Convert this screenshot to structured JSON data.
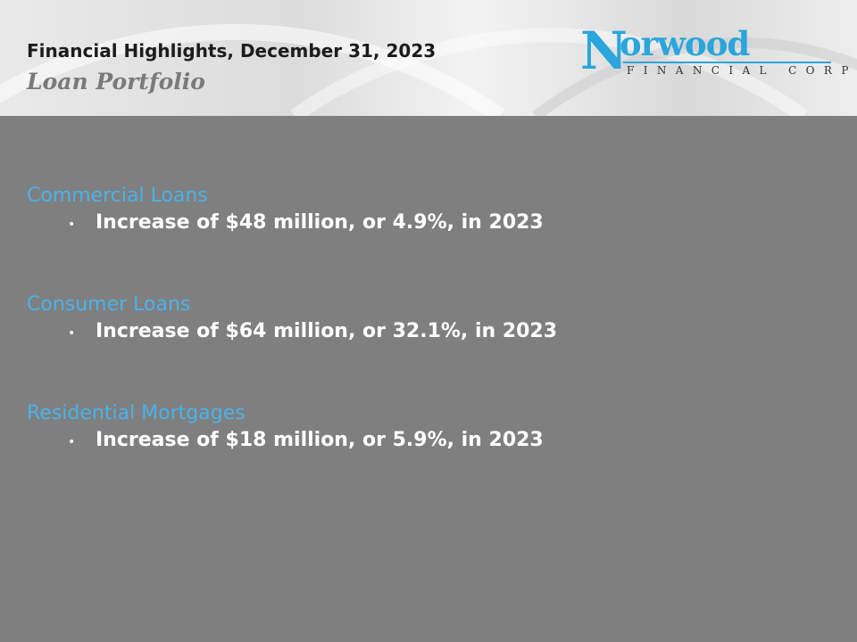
{
  "header": {
    "title": "Financial Highlights, December 31, 2023",
    "subtitle": "Loan Portfolio"
  },
  "logo": {
    "initial": "N",
    "name_rest": "orwood",
    "tagline": "FINANCIAL CORP",
    "color": "#2aa6dc"
  },
  "sections": [
    {
      "heading": "Commercial Loans",
      "bullet_glyph": "•",
      "bullet": "Increase of $48 million, or 4.9%, in 2023"
    },
    {
      "heading": "Consumer Loans",
      "bullet_glyph": "•",
      "bullet": "Increase of $64 million, or 32.1%, in 2023"
    },
    {
      "heading": "Residential Mortgages",
      "bullet_glyph": "•",
      "bullet": "Increase of $18 million, or 5.9%, in 2023"
    }
  ],
  "colors": {
    "background": "#7f7f7f",
    "heading": "#4ab2ea",
    "bullet_text": "#ffffff"
  }
}
